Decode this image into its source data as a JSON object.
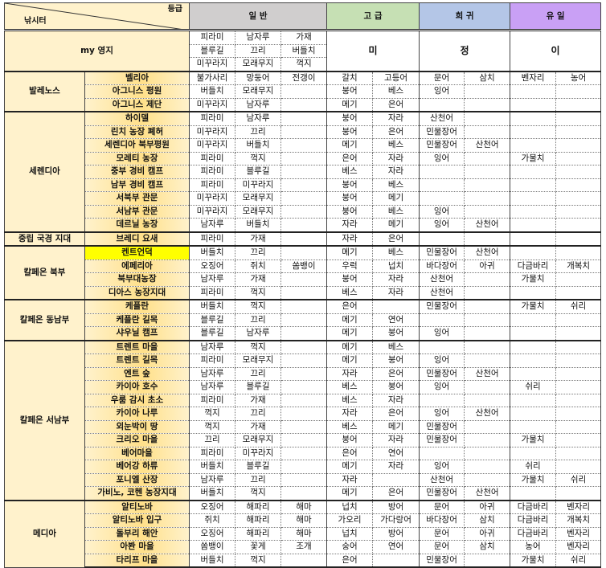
{
  "header": {
    "grade_label": "등급",
    "spot_label": "낚시터",
    "normal": "일 반",
    "high": "고 급",
    "rare": "희 귀",
    "unique": "유 일"
  },
  "colors": {
    "normal": "#d0cece",
    "high": "#c6e0b4",
    "rare": "#b4c6e7",
    "unique": "#c9a0f5",
    "location": "#ffe699",
    "highlight": "#ffff00"
  },
  "my_territory": {
    "label": "my 영지",
    "normal": [
      [
        "피라미",
        "남자루",
        "가재"
      ],
      [
        "블루길",
        "끄리",
        "버들치"
      ],
      [
        "미꾸라지",
        "모래무지",
        "꺽지"
      ]
    ],
    "high": "미",
    "rare": "정",
    "unique": "이"
  },
  "regions": [
    {
      "name": "발레노스",
      "locations": [
        {
          "name": "벨리아",
          "normal": [
            "불가사리",
            "망둥어",
            "전갱이"
          ],
          "high": [
            "갈치",
            "고등어"
          ],
          "rare": [
            "문어",
            "삼치"
          ],
          "unique": [
            "벤자리",
            "농어"
          ]
        },
        {
          "name": "아그니스 평원",
          "normal": [
            "버들치",
            "모래무지",
            ""
          ],
          "high": [
            "붕어",
            "베스"
          ],
          "rare": [
            "잉어",
            ""
          ],
          "unique": [
            "",
            ""
          ]
        },
        {
          "name": "아그니스 제단",
          "normal": [
            "미꾸라지",
            "남자루",
            ""
          ],
          "high": [
            "메기",
            "은어"
          ],
          "rare": [
            "",
            ""
          ],
          "unique": [
            "",
            ""
          ]
        }
      ]
    },
    {
      "name": "세렌디아",
      "locations": [
        {
          "name": "하이델",
          "normal": [
            "피라미",
            "남자루",
            ""
          ],
          "high": [
            "붕어",
            "자라"
          ],
          "rare": [
            "산천어",
            ""
          ],
          "unique": [
            "",
            ""
          ]
        },
        {
          "name": "린치 농장 폐허",
          "normal": [
            "미꾸라지",
            "끄리",
            ""
          ],
          "high": [
            "붕어",
            "은어"
          ],
          "rare": [
            "민물장어",
            ""
          ],
          "unique": [
            "",
            ""
          ]
        },
        {
          "name": "세렌디아 북부평원",
          "normal": [
            "미꾸라지",
            "버들치",
            ""
          ],
          "high": [
            "메기",
            "베스"
          ],
          "rare": [
            "민물장어",
            "산천어"
          ],
          "unique": [
            "",
            ""
          ]
        },
        {
          "name": "모레티 농장",
          "normal": [
            "피라미",
            "꺽지",
            ""
          ],
          "high": [
            "은어",
            "자라"
          ],
          "rare": [
            "잉어",
            ""
          ],
          "unique": [
            "가물치",
            ""
          ]
        },
        {
          "name": "중부 경비 캠프",
          "normal": [
            "피라미",
            "블루길",
            ""
          ],
          "high": [
            "베스",
            "자라"
          ],
          "rare": [
            "",
            ""
          ],
          "unique": [
            "",
            ""
          ]
        },
        {
          "name": "남부 경비 캠프",
          "normal": [
            "피라미",
            "미꾸라지",
            ""
          ],
          "high": [
            "붕어",
            "베스"
          ],
          "rare": [
            "",
            ""
          ],
          "unique": [
            "",
            ""
          ]
        },
        {
          "name": "서북부 관문",
          "normal": [
            "미꾸라지",
            "모래무지",
            ""
          ],
          "high": [
            "붕어",
            "메기"
          ],
          "rare": [
            "",
            ""
          ],
          "unique": [
            "",
            ""
          ]
        },
        {
          "name": "서남부 관문",
          "normal": [
            "미꾸라지",
            "모래무지",
            ""
          ],
          "high": [
            "붕어",
            "베스"
          ],
          "rare": [
            "잉어",
            ""
          ],
          "unique": [
            "",
            ""
          ]
        },
        {
          "name": "데르닐 농장",
          "normal": [
            "남자루",
            "버들치",
            ""
          ],
          "high": [
            "자라",
            "메기"
          ],
          "rare": [
            "잉어",
            "산천어"
          ],
          "unique": [
            "",
            ""
          ]
        }
      ]
    },
    {
      "name": "중립 국경 지대",
      "locations": [
        {
          "name": "브레디 요새",
          "normal": [
            "피라미",
            "가재",
            ""
          ],
          "high": [
            "자라",
            "은어"
          ],
          "rare": [
            "",
            ""
          ],
          "unique": [
            "",
            ""
          ]
        }
      ]
    },
    {
      "name": "칼페온 북부",
      "locations": [
        {
          "name": "켄트언덕",
          "highlight": true,
          "normal": [
            "버들치",
            "끄리",
            ""
          ],
          "high": [
            "메기",
            "베스"
          ],
          "rare": [
            "민물장어",
            "산천어"
          ],
          "unique": [
            "",
            ""
          ]
        },
        {
          "name": "에페리아",
          "normal": [
            "오징어",
            "쥐치",
            "쏨뱅이"
          ],
          "high": [
            "우럭",
            "넙치"
          ],
          "rare": [
            "바다장어",
            "아귀"
          ],
          "unique": [
            "다금바리",
            "개복치"
          ]
        },
        {
          "name": "북부대농장",
          "normal": [
            "남자루",
            "가재",
            ""
          ],
          "high": [
            "붕어",
            "자라"
          ],
          "rare": [
            "산천어",
            ""
          ],
          "unique": [
            "가물치",
            ""
          ]
        },
        {
          "name": "디아스 농장지대",
          "normal": [
            "피라미",
            "꺽지",
            ""
          ],
          "high": [
            "베스",
            "자라"
          ],
          "rare": [
            "산천어",
            ""
          ],
          "unique": [
            "",
            ""
          ]
        }
      ]
    },
    {
      "name": "칼페온 동남부",
      "locations": [
        {
          "name": "케플란",
          "normal": [
            "버들치",
            "꺽지",
            ""
          ],
          "high": [
            "은어",
            ""
          ],
          "rare": [
            "민물장어",
            ""
          ],
          "unique": [
            "가물치",
            "쉬리"
          ]
        },
        {
          "name": "케플란 길목",
          "normal": [
            "블루길",
            "끄리",
            ""
          ],
          "high": [
            "메기",
            "연어"
          ],
          "rare": [
            "",
            ""
          ],
          "unique": [
            "",
            ""
          ]
        },
        {
          "name": "샤우닐 캠프",
          "normal": [
            "블루길",
            "남자루",
            ""
          ],
          "high": [
            "메기",
            "붕어"
          ],
          "rare": [
            "잉어",
            ""
          ],
          "unique": [
            "",
            ""
          ]
        }
      ]
    },
    {
      "name": "칼페온 서남부",
      "locations": [
        {
          "name": "트렌트 마을",
          "normal": [
            "남자루",
            "꺽지",
            ""
          ],
          "high": [
            "메기",
            "베스"
          ],
          "rare": [
            "",
            ""
          ],
          "unique": [
            "",
            ""
          ]
        },
        {
          "name": "트렌트 길목",
          "normal": [
            "피라미",
            "모래무지",
            ""
          ],
          "high": [
            "메기",
            "붕어"
          ],
          "rare": [
            "잉어",
            ""
          ],
          "unique": [
            "",
            ""
          ]
        },
        {
          "name": "엔트 숲",
          "normal": [
            "남자루",
            "끄리",
            ""
          ],
          "high": [
            "자라",
            "은어"
          ],
          "rare": [
            "민물장어",
            "산천어"
          ],
          "unique": [
            "",
            ""
          ]
        },
        {
          "name": "카이아 호수",
          "normal": [
            "남자루",
            "블루길",
            ""
          ],
          "high": [
            "베스",
            "붕어"
          ],
          "rare": [
            "잉어",
            ""
          ],
          "unique": [
            "쉬리",
            ""
          ]
        },
        {
          "name": "우룸 감시 초소",
          "normal": [
            "피라미",
            "가재",
            ""
          ],
          "high": [
            "베스",
            "자라"
          ],
          "rare": [
            "",
            ""
          ],
          "unique": [
            "",
            ""
          ]
        },
        {
          "name": "카이아 나루",
          "normal": [
            "꺽지",
            "끄리",
            ""
          ],
          "high": [
            "자라",
            "은어"
          ],
          "rare": [
            "잉어",
            "산천어"
          ],
          "unique": [
            "",
            ""
          ]
        },
        {
          "name": "외눈박이 땅",
          "normal": [
            "꺽지",
            "가재",
            ""
          ],
          "high": [
            "베스",
            "메기"
          ],
          "rare": [
            "민물장어",
            ""
          ],
          "unique": [
            "",
            ""
          ]
        },
        {
          "name": "크리오 마을",
          "normal": [
            "끄리",
            "모래무지",
            ""
          ],
          "high": [
            "붕어",
            "자라"
          ],
          "rare": [
            "민물장어",
            ""
          ],
          "unique": [
            "가물치",
            ""
          ]
        },
        {
          "name": "베어마을",
          "normal": [
            "피라미",
            "미꾸라지",
            ""
          ],
          "high": [
            "은어",
            "연어"
          ],
          "rare": [
            "",
            ""
          ],
          "unique": [
            "",
            ""
          ]
        },
        {
          "name": "베어강 하류",
          "normal": [
            "버들치",
            "블루길",
            ""
          ],
          "high": [
            "메기",
            "자라"
          ],
          "rare": [
            "잉어",
            ""
          ],
          "unique": [
            "쉬리",
            ""
          ]
        },
        {
          "name": "포니엘 산장",
          "normal": [
            "남자루",
            "끄리",
            ""
          ],
          "high": [
            "자라",
            ""
          ],
          "rare": [
            "산천어",
            ""
          ],
          "unique": [
            "가물치",
            "쉬리"
          ]
        },
        {
          "name": "가비노, 코헨 농장지대",
          "normal": [
            "버들치",
            "꺽지",
            ""
          ],
          "high": [
            "메기",
            "은어"
          ],
          "rare": [
            "민물장어",
            "산천어"
          ],
          "unique": [
            "",
            ""
          ]
        }
      ]
    },
    {
      "name": "메디아",
      "locations": [
        {
          "name": "알티노바",
          "normal": [
            "오징어",
            "해파리",
            "해마"
          ],
          "high": [
            "넙치",
            "방어"
          ],
          "rare": [
            "문어",
            "아귀"
          ],
          "unique": [
            "다금바리",
            "벤자리"
          ]
        },
        {
          "name": "알티노바 입구",
          "normal": [
            "쥐치",
            "해파리",
            "해마"
          ],
          "high": [
            "가오리",
            "가다랑어"
          ],
          "rare": [
            "바다장어",
            "삼치"
          ],
          "unique": [
            "다금바리",
            "개복치"
          ]
        },
        {
          "name": "돌부리 해안",
          "normal": [
            "오징어",
            "해파리",
            "해마"
          ],
          "high": [
            "넙치",
            "방어"
          ],
          "rare": [
            "문어",
            "아귀"
          ],
          "unique": [
            "다금바리",
            "벤자리"
          ]
        },
        {
          "name": "아봔 마을",
          "normal": [
            "쏨뱅이",
            "꽃게",
            "조개"
          ],
          "high": [
            "숭어",
            "연어"
          ],
          "rare": [
            "문어",
            "삼치"
          ],
          "unique": [
            "농어",
            "벤자리"
          ]
        },
        {
          "name": "타리프 마을",
          "normal": [
            "버들치",
            "꺽지",
            ""
          ],
          "high": [
            "은어",
            ""
          ],
          "rare": [
            "민물장어",
            ""
          ],
          "unique": [
            "가물치",
            "쉬리"
          ]
        }
      ]
    }
  ]
}
